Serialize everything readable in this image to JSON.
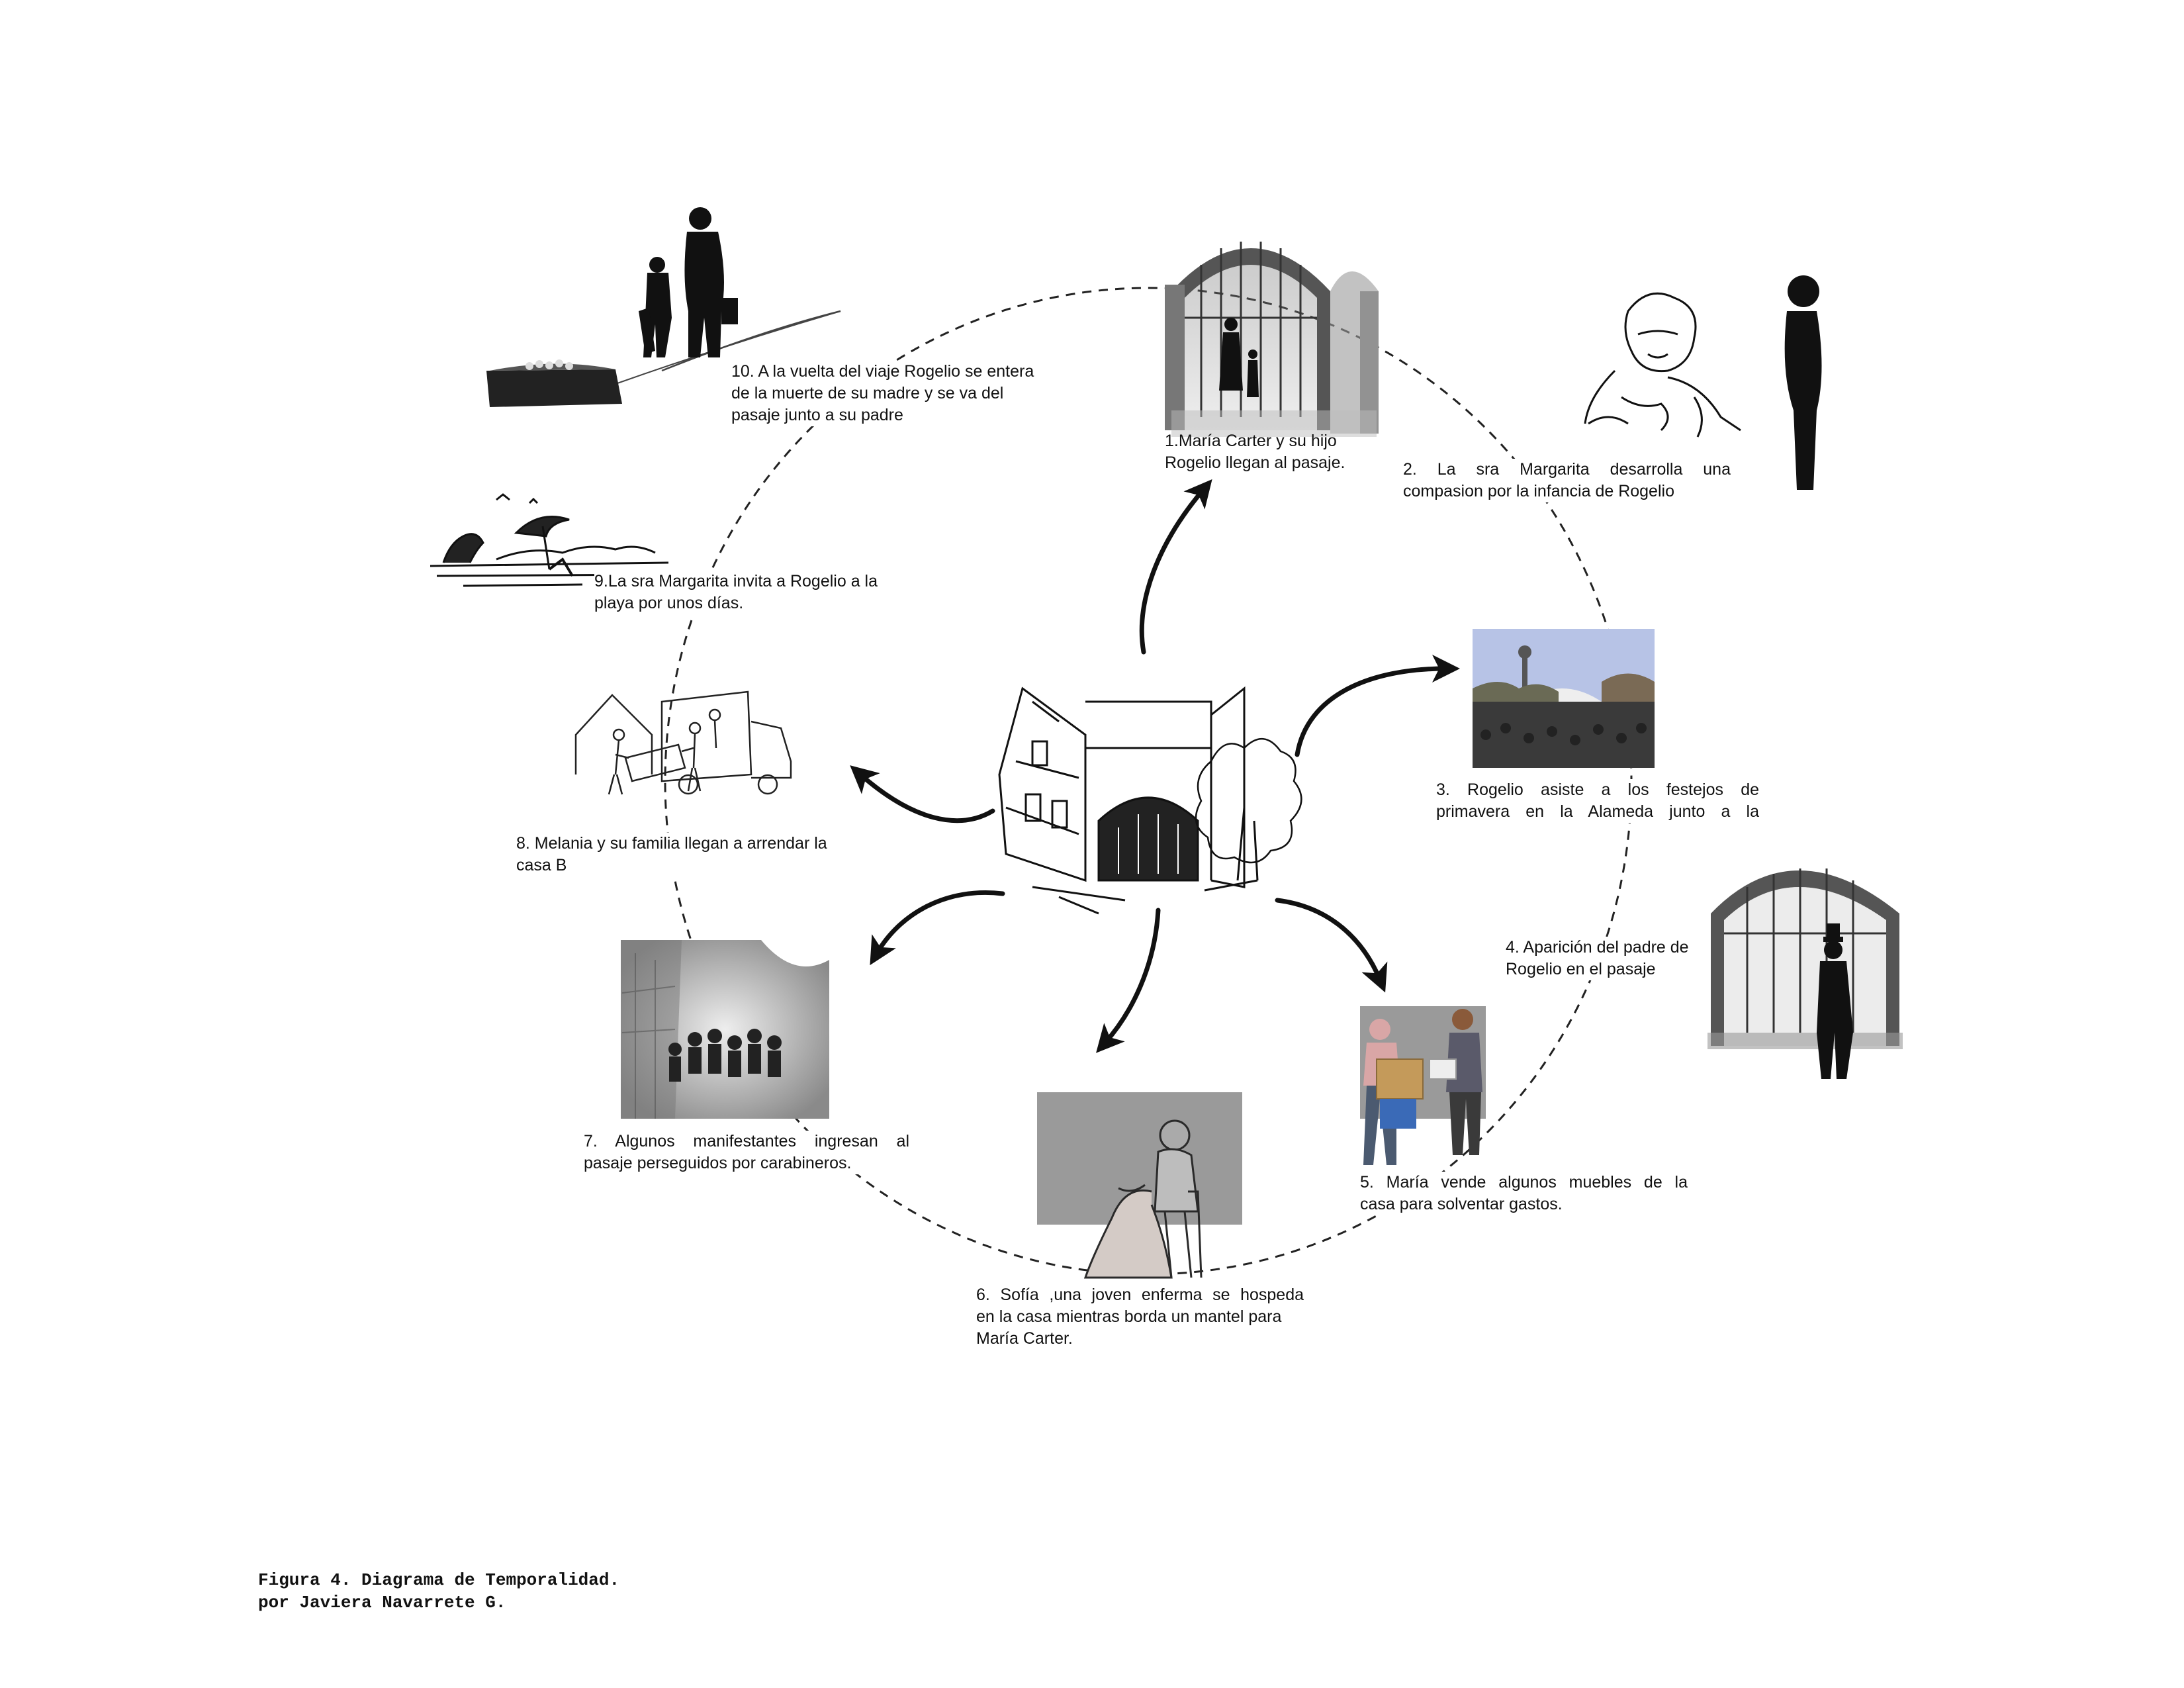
{
  "events": [
    {
      "id": 1,
      "lines": [
        "1.María Carter y su hijo",
        "Rogelio llegan  al pasaje."
      ]
    },
    {
      "id": 2,
      "lines": [
        "2.  La  sra  Margarita  desarrolla   una",
        "compasion por la infancia de Rogelio"
      ]
    },
    {
      "id": 3,
      "lines": [
        "3.  Rogelio  asiste  a  los  festejos  de",
        "primavera  en  la  Alameda  junto  a  la"
      ]
    },
    {
      "id": 4,
      "lines": [
        "4. Aparición del padre de",
        "Rogelio en el pasaje"
      ]
    },
    {
      "id": 5,
      "lines": [
        "5.  María  vende  algunos  muebles  de  la",
        "casa para solventar gastos."
      ]
    },
    {
      "id": 6,
      "lines": [
        "6.  Sofía  ,una  joven  enferma  se  hospeda",
        "en la casa mientras borda un mantel para",
        "María Carter."
      ]
    },
    {
      "id": 7,
      "lines": [
        "7.  Algunos  manifestantes  ingresan  al",
        "pasaje perseguidos por carabineros."
      ]
    },
    {
      "id": 8,
      "lines": [
        "8. Melania y su familia  llegan a arrendar la",
        "casa B"
      ]
    },
    {
      "id": 9,
      "lines": [
        "9.La sra Margarita invita a Rogelio a la",
        "playa  por unos días."
      ]
    },
    {
      "id": 10,
      "lines": [
        "10. A la vuelta del viaje Rogelio se entera",
        "de la muerte de su madre y se va del",
        "pasaje junto a su padre"
      ]
    }
  ],
  "caption": {
    "line1": "Figura 4. Diagrama de Temporalidad.",
    "line2": "por Javiera Navarrete G."
  },
  "colors": {
    "ink": "#111111",
    "photo_gray": "#9a9a9a",
    "arch_gray": "#7d7d7d"
  }
}
